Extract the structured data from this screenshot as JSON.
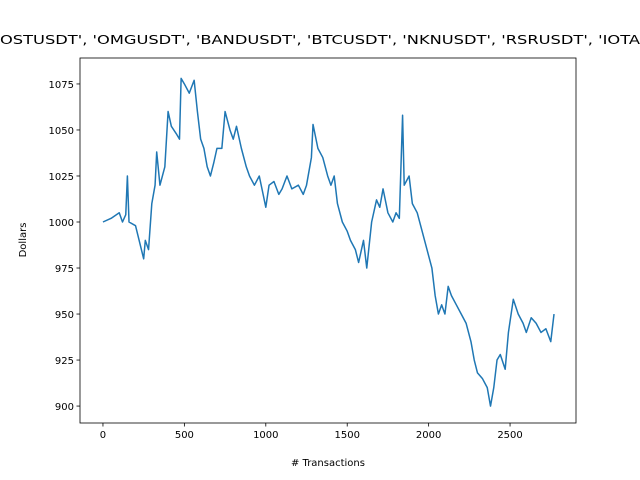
{
  "chart_data": {
    "type": "line",
    "title": "OSTUSDT', 'OMGUSDT', 'BANDUSDT', 'BTCUSDT', 'NKNUSDT', 'RSRUSDT', 'IOTA",
    "x_label": "# Transactions",
    "y_label": "Dollars",
    "x": [
      0,
      50,
      100,
      120,
      140,
      150,
      160,
      200,
      250,
      260,
      280,
      300,
      320,
      330,
      350,
      380,
      400,
      420,
      450,
      470,
      480,
      500,
      530,
      560,
      580,
      600,
      620,
      640,
      660,
      680,
      700,
      730,
      750,
      780,
      800,
      820,
      850,
      880,
      900,
      930,
      960,
      1000,
      1020,
      1050,
      1080,
      1100,
      1130,
      1160,
      1200,
      1230,
      1250,
      1280,
      1290,
      1320,
      1350,
      1380,
      1400,
      1420,
      1440,
      1470,
      1500,
      1520,
      1550,
      1570,
      1600,
      1620,
      1650,
      1680,
      1700,
      1720,
      1750,
      1780,
      1800,
      1820,
      1840,
      1850,
      1880,
      1900,
      1930,
      1960,
      1990,
      2020,
      2040,
      2060,
      2080,
      2100,
      2120,
      2140,
      2170,
      2200,
      2230,
      2260,
      2280,
      2300,
      2330,
      2360,
      2380,
      2400,
      2420,
      2440,
      2470,
      2490,
      2520,
      2550,
      2580,
      2600,
      2630,
      2660,
      2690,
      2720,
      2750,
      2770
    ],
    "series": [
      {
        "color": "#1f77b4",
        "values": [
          1000,
          1002,
          1005,
          1000,
          1004,
          1025,
          1000,
          998,
          980,
          990,
          985,
          1010,
          1020,
          1038,
          1020,
          1030,
          1060,
          1052,
          1048,
          1045,
          1078,
          1075,
          1070,
          1077,
          1060,
          1045,
          1040,
          1030,
          1025,
          1032,
          1040,
          1040,
          1060,
          1050,
          1045,
          1052,
          1040,
          1030,
          1025,
          1020,
          1025,
          1008,
          1020,
          1022,
          1015,
          1018,
          1025,
          1018,
          1020,
          1015,
          1020,
          1035,
          1053,
          1040,
          1035,
          1025,
          1020,
          1025,
          1010,
          1000,
          995,
          990,
          985,
          978,
          990,
          975,
          1000,
          1012,
          1008,
          1018,
          1005,
          1000,
          1005,
          1002,
          1058,
          1020,
          1025,
          1010,
          1005,
          995,
          985,
          975,
          960,
          950,
          955,
          950,
          965,
          960,
          955,
          950,
          945,
          935,
          925,
          918,
          915,
          910,
          900,
          910,
          925,
          928,
          920,
          940,
          958,
          950,
          945,
          940,
          948,
          945,
          940,
          942,
          935,
          950
        ]
      }
    ],
    "xlim": [
      -141,
      2905
    ],
    "ylim": [
      890.8,
      1089.1
    ],
    "xticks": [
      0,
      500,
      1000,
      1500,
      2000,
      2500
    ],
    "yticks": [
      900,
      925,
      950,
      975,
      1000,
      1025,
      1050,
      1075
    ]
  }
}
